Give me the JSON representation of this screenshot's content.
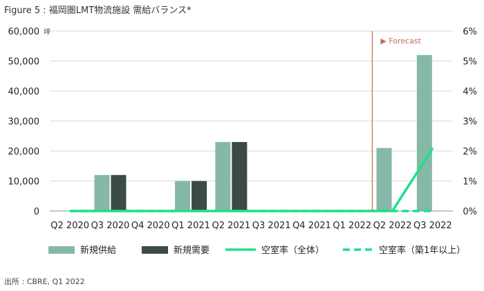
{
  "title": "Figure 5 : 福岡圏LMT物流施設 需給バランス*",
  "source": "出所 : CBRE, Q1 2022",
  "chart_data": {
    "type": "bar",
    "categories": [
      "Q2 2020",
      "Q3 2020",
      "Q4 2020",
      "Q1 2021",
      "Q2 2021",
      "Q3 2021",
      "Q4 2021",
      "Q1 2022",
      "Q2 2022",
      "Q3 2022"
    ],
    "series": [
      {
        "name": "新規供給",
        "type": "bar",
        "color": "#86b8a8",
        "values": [
          0,
          12000,
          0,
          10000,
          23000,
          0,
          0,
          0,
          21000,
          52000
        ]
      },
      {
        "name": "新規需要",
        "type": "bar",
        "color": "#3c4a48",
        "values": [
          0,
          12000,
          0,
          10000,
          23000,
          0,
          0,
          0,
          null,
          null
        ]
      },
      {
        "name": "空室率（全体）",
        "type": "line",
        "axis": "right",
        "style": "solid",
        "color": "#1ee08a",
        "values": [
          0,
          0,
          0,
          0,
          0,
          0,
          0,
          0,
          0,
          2.1
        ]
      },
      {
        "name": "空室率（築1年以上）",
        "type": "line",
        "axis": "right",
        "style": "dashed",
        "color": "#1ee08a",
        "values": [
          0,
          0,
          0,
          0,
          0,
          0,
          0,
          0,
          0,
          0
        ]
      }
    ],
    "ylim": [
      0,
      60000
    ],
    "y_ticks": [
      "0",
      "10,000",
      "20,000",
      "30,000",
      "40,000",
      "50,000",
      "60,000"
    ],
    "y_unit": "坪",
    "y2lim": [
      0,
      6
    ],
    "y2_ticks": [
      "0%",
      "1%",
      "2%",
      "3%",
      "4%",
      "5%",
      "6%"
    ],
    "forecast_label": "▶ Forecast",
    "forecast_color": "#c46a55",
    "forecast_start_index": 8,
    "grid": true,
    "legend_position": "bottom"
  }
}
